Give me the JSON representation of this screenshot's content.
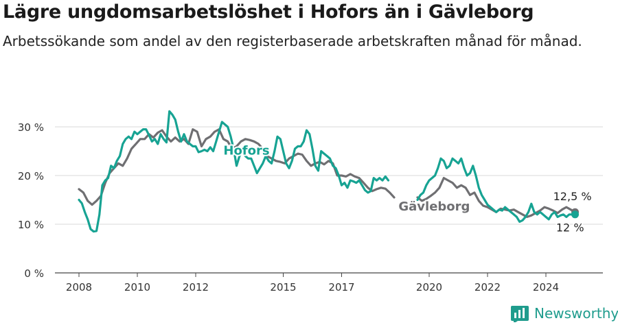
{
  "header": {
    "title": "Lägre ungdomsarbetslöshet i Hofors än i Gävleborg",
    "subtitle": "Arbetssökande som andel av den registerbaserade arbetskraften månad för månad."
  },
  "brand": {
    "name": "Newsworthy"
  },
  "chart_data": {
    "type": "line",
    "title": "Lägre ungdomsarbetslöshet i Hofors än i Gävleborg",
    "subtitle": "Arbetssökande som andel av den registerbaserade arbetskraften månad för månad.",
    "xlabel": "",
    "ylabel": "",
    "xlim": [
      2007.8,
      2025.5
    ],
    "ylim": [
      0,
      35
    ],
    "grid": true,
    "y_ticks": [
      0,
      10,
      20,
      30
    ],
    "y_tick_labels": [
      "0 %",
      "10 %",
      "20 %",
      "30 %"
    ],
    "x_ticks": [
      2008,
      2010,
      2012,
      2015,
      2017,
      2020,
      2022,
      2024
    ],
    "x_tick_labels": [
      "2008",
      "2010",
      "2012",
      "2015",
      "2017",
      "2020",
      "2022",
      "2024"
    ],
    "series": [
      {
        "name": "Gävleborg",
        "color": "#6f6f72",
        "label": "Gävleborg",
        "end_label": "12,5 %",
        "points": [
          [
            2008.0,
            17.2
          ],
          [
            2008.15,
            16.5
          ],
          [
            2008.3,
            14.8
          ],
          [
            2008.45,
            14.0
          ],
          [
            2008.6,
            14.8
          ],
          [
            2008.75,
            15.8
          ],
          [
            2008.9,
            18.5
          ],
          [
            2009.05,
            20.5
          ],
          [
            2009.2,
            21.5
          ],
          [
            2009.35,
            22.5
          ],
          [
            2009.5,
            22.0
          ],
          [
            2009.65,
            23.5
          ],
          [
            2009.8,
            25.5
          ],
          [
            2009.95,
            26.5
          ],
          [
            2010.1,
            27.5
          ],
          [
            2010.25,
            27.5
          ],
          [
            2010.4,
            28.5
          ],
          [
            2010.55,
            27.8
          ],
          [
            2010.7,
            28.8
          ],
          [
            2010.85,
            29.3
          ],
          [
            2011.0,
            28.0
          ],
          [
            2011.15,
            27.0
          ],
          [
            2011.3,
            27.8
          ],
          [
            2011.45,
            27.0
          ],
          [
            2011.6,
            27.5
          ],
          [
            2011.75,
            26.5
          ],
          [
            2011.9,
            29.5
          ],
          [
            2012.05,
            29.0
          ],
          [
            2012.2,
            26.0
          ],
          [
            2012.35,
            27.5
          ],
          [
            2012.5,
            28.0
          ],
          [
            2012.65,
            29.0
          ],
          [
            2012.8,
            29.5
          ],
          [
            2012.95,
            27.5
          ],
          [
            2013.1,
            27.0
          ],
          [
            2013.25,
            25.5
          ],
          [
            2013.4,
            26.0
          ],
          [
            2013.55,
            27.0
          ],
          [
            2013.7,
            27.5
          ],
          [
            2013.85,
            27.3
          ],
          [
            2014.0,
            27.0
          ],
          [
            2014.15,
            26.5
          ],
          [
            2014.3,
            25.5
          ],
          [
            2014.45,
            24.0
          ],
          [
            2014.6,
            23.5
          ],
          [
            2014.75,
            23.0
          ],
          [
            2014.9,
            22.8
          ],
          [
            2015.05,
            22.5
          ],
          [
            2015.2,
            23.5
          ],
          [
            2015.35,
            24.0
          ],
          [
            2015.5,
            24.5
          ],
          [
            2015.65,
            24.3
          ],
          [
            2015.8,
            23.0
          ],
          [
            2015.95,
            22.0
          ],
          [
            2016.1,
            22.5
          ],
          [
            2016.25,
            22.8
          ],
          [
            2016.4,
            22.3
          ],
          [
            2016.55,
            23.0
          ],
          [
            2016.7,
            22.5
          ],
          [
            2016.85,
            20.0
          ],
          [
            2017.0,
            20.0
          ],
          [
            2017.15,
            19.8
          ],
          [
            2017.3,
            20.3
          ],
          [
            2017.45,
            19.8
          ],
          [
            2017.6,
            19.5
          ],
          [
            2017.75,
            18.5
          ],
          [
            2017.9,
            17.5
          ],
          [
            2018.05,
            16.8
          ],
          [
            2018.2,
            17.2
          ],
          [
            2018.35,
            17.5
          ],
          [
            2018.5,
            17.3
          ],
          [
            2018.65,
            16.5
          ],
          [
            2018.8,
            15.5
          ],
          null,
          [
            2019.6,
            15.5
          ],
          [
            2019.75,
            14.8
          ],
          [
            2019.9,
            15.2
          ],
          [
            2020.05,
            15.8
          ],
          [
            2020.2,
            16.5
          ],
          [
            2020.35,
            17.5
          ],
          [
            2020.5,
            19.5
          ],
          [
            2020.65,
            19.0
          ],
          [
            2020.8,
            18.5
          ],
          [
            2020.95,
            17.5
          ],
          [
            2021.1,
            18.0
          ],
          [
            2021.25,
            17.5
          ],
          [
            2021.4,
            16.0
          ],
          [
            2021.55,
            16.5
          ],
          [
            2021.7,
            14.8
          ],
          [
            2021.85,
            13.8
          ],
          [
            2022.0,
            13.5
          ],
          [
            2022.15,
            13.0
          ],
          [
            2022.3,
            12.5
          ],
          [
            2022.45,
            13.2
          ],
          [
            2022.6,
            13.0
          ],
          [
            2022.75,
            12.8
          ],
          [
            2022.9,
            13.0
          ],
          [
            2023.05,
            12.5
          ],
          [
            2023.2,
            12.0
          ],
          [
            2023.35,
            11.5
          ],
          [
            2023.5,
            11.8
          ],
          [
            2023.65,
            12.3
          ],
          [
            2023.8,
            12.8
          ],
          [
            2023.95,
            13.5
          ],
          [
            2024.1,
            13.2
          ],
          [
            2024.25,
            12.8
          ],
          [
            2024.4,
            12.3
          ],
          [
            2024.55,
            13.0
          ],
          [
            2024.7,
            13.5
          ],
          [
            2024.85,
            13.0
          ],
          [
            2025.0,
            12.5
          ]
        ]
      },
      {
        "name": "Hofors",
        "color": "#17a393",
        "label": "Hofors",
        "end_label": "12 %",
        "points": [
          [
            2008.0,
            15.0
          ],
          [
            2008.1,
            14.3
          ],
          [
            2008.2,
            12.5
          ],
          [
            2008.3,
            11.0
          ],
          [
            2008.4,
            9.0
          ],
          [
            2008.5,
            8.5
          ],
          [
            2008.6,
            8.6
          ],
          [
            2008.7,
            12.0
          ],
          [
            2008.8,
            18.0
          ],
          [
            2008.9,
            19.0
          ],
          [
            2009.0,
            19.5
          ],
          [
            2009.1,
            22.0
          ],
          [
            2009.2,
            21.5
          ],
          [
            2009.3,
            23.0
          ],
          [
            2009.4,
            24.0
          ],
          [
            2009.5,
            26.5
          ],
          [
            2009.6,
            27.5
          ],
          [
            2009.7,
            28.0
          ],
          [
            2009.8,
            27.5
          ],
          [
            2009.9,
            29.0
          ],
          [
            2010.0,
            28.5
          ],
          [
            2010.1,
            29.0
          ],
          [
            2010.2,
            29.5
          ],
          [
            2010.3,
            29.5
          ],
          [
            2010.4,
            28.3
          ],
          [
            2010.5,
            27.0
          ],
          [
            2010.6,
            27.5
          ],
          [
            2010.7,
            26.5
          ],
          [
            2010.8,
            28.5
          ],
          [
            2010.9,
            27.5
          ],
          [
            2011.0,
            26.8
          ],
          [
            2011.1,
            33.2
          ],
          [
            2011.2,
            32.5
          ],
          [
            2011.3,
            31.5
          ],
          [
            2011.4,
            29.0
          ],
          [
            2011.5,
            27.0
          ],
          [
            2011.6,
            28.5
          ],
          [
            2011.7,
            27.0
          ],
          [
            2011.8,
            26.5
          ],
          [
            2011.9,
            26.0
          ],
          [
            2012.0,
            26.0
          ],
          [
            2012.1,
            24.8
          ],
          [
            2012.2,
            25.0
          ],
          [
            2012.3,
            25.3
          ],
          [
            2012.4,
            25.0
          ],
          [
            2012.5,
            25.8
          ],
          [
            2012.6,
            25.0
          ],
          [
            2012.7,
            27.0
          ],
          [
            2012.8,
            29.0
          ],
          [
            2012.9,
            31.0
          ],
          [
            2013.0,
            30.5
          ],
          [
            2013.1,
            30.0
          ],
          [
            2013.2,
            28.0
          ],
          [
            2013.3,
            25.5
          ],
          [
            2013.4,
            22.0
          ],
          [
            2013.5,
            24.0
          ],
          [
            2013.6,
            25.0
          ],
          [
            2013.7,
            24.0
          ],
          [
            2013.8,
            23.5
          ],
          [
            2013.9,
            23.5
          ],
          [
            2014.0,
            22.0
          ],
          [
            2014.1,
            20.5
          ],
          [
            2014.2,
            21.5
          ],
          [
            2014.3,
            22.5
          ],
          [
            2014.4,
            24.0
          ],
          [
            2014.5,
            23.0
          ],
          [
            2014.6,
            22.5
          ],
          [
            2014.7,
            25.0
          ],
          [
            2014.8,
            28.0
          ],
          [
            2014.9,
            27.5
          ],
          [
            2015.0,
            25.0
          ],
          [
            2015.1,
            22.5
          ],
          [
            2015.2,
            21.5
          ],
          [
            2015.3,
            23.0
          ],
          [
            2015.4,
            25.5
          ],
          [
            2015.5,
            26.0
          ],
          [
            2015.6,
            26.0
          ],
          [
            2015.7,
            27.0
          ],
          [
            2015.8,
            29.3
          ],
          [
            2015.9,
            28.5
          ],
          [
            2016.0,
            25.5
          ],
          [
            2016.1,
            22.0
          ],
          [
            2016.2,
            21.0
          ],
          [
            2016.3,
            25.0
          ],
          [
            2016.4,
            24.5
          ],
          [
            2016.5,
            24.0
          ],
          [
            2016.6,
            23.5
          ],
          [
            2016.7,
            22.0
          ],
          [
            2016.8,
            21.5
          ],
          [
            2016.9,
            20.0
          ],
          [
            2017.0,
            18.0
          ],
          [
            2017.1,
            18.5
          ],
          [
            2017.2,
            17.5
          ],
          [
            2017.3,
            19.0
          ],
          [
            2017.4,
            18.8
          ],
          [
            2017.5,
            18.5
          ],
          [
            2017.6,
            19.0
          ],
          [
            2017.7,
            18.0
          ],
          [
            2017.8,
            17.0
          ],
          [
            2017.9,
            16.5
          ],
          [
            2018.0,
            16.8
          ],
          [
            2018.1,
            19.5
          ],
          [
            2018.2,
            19.0
          ],
          [
            2018.3,
            19.5
          ],
          [
            2018.4,
            19.0
          ],
          [
            2018.5,
            19.8
          ],
          [
            2018.6,
            19.0
          ],
          null,
          [
            2019.6,
            15.0
          ],
          [
            2019.7,
            16.0
          ],
          [
            2019.8,
            16.5
          ],
          [
            2019.9,
            18.0
          ],
          [
            2020.0,
            19.0
          ],
          [
            2020.1,
            19.5
          ],
          [
            2020.2,
            20.0
          ],
          [
            2020.3,
            21.5
          ],
          [
            2020.4,
            23.5
          ],
          [
            2020.5,
            23.0
          ],
          [
            2020.6,
            21.5
          ],
          [
            2020.7,
            22.0
          ],
          [
            2020.8,
            23.5
          ],
          [
            2020.9,
            23.0
          ],
          [
            2021.0,
            22.5
          ],
          [
            2021.1,
            23.5
          ],
          [
            2021.2,
            21.5
          ],
          [
            2021.3,
            20.0
          ],
          [
            2021.4,
            20.5
          ],
          [
            2021.5,
            22.0
          ],
          [
            2021.6,
            20.0
          ],
          [
            2021.7,
            17.5
          ],
          [
            2021.8,
            16.0
          ],
          [
            2021.9,
            15.0
          ],
          [
            2022.0,
            14.0
          ],
          [
            2022.1,
            13.5
          ],
          [
            2022.2,
            13.0
          ],
          [
            2022.3,
            12.5
          ],
          [
            2022.4,
            13.0
          ],
          [
            2022.5,
            12.8
          ],
          [
            2022.6,
            13.5
          ],
          [
            2022.7,
            13.0
          ],
          [
            2022.8,
            12.5
          ],
          [
            2022.9,
            12.0
          ],
          [
            2023.0,
            11.5
          ],
          [
            2023.1,
            10.5
          ],
          [
            2023.2,
            10.8
          ],
          [
            2023.3,
            11.5
          ],
          [
            2023.4,
            12.5
          ],
          [
            2023.5,
            14.2
          ],
          [
            2023.6,
            12.5
          ],
          [
            2023.7,
            12.0
          ],
          [
            2023.8,
            12.5
          ],
          [
            2023.9,
            12.0
          ],
          [
            2024.0,
            11.5
          ],
          [
            2024.1,
            11.0
          ],
          [
            2024.2,
            12.0
          ],
          [
            2024.3,
            12.5
          ],
          [
            2024.4,
            11.5
          ],
          [
            2024.5,
            11.8
          ],
          [
            2024.6,
            12.0
          ],
          [
            2024.7,
            11.5
          ],
          [
            2024.8,
            12.0
          ],
          [
            2024.9,
            12.0
          ],
          [
            2025.0,
            12.0
          ]
        ]
      }
    ]
  }
}
